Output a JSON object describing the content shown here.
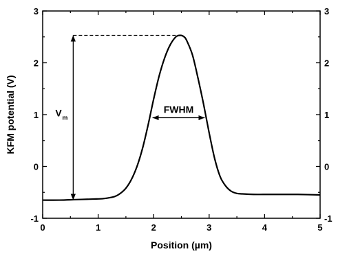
{
  "chart_data": {
    "type": "line",
    "title": "",
    "xlabel": "Position (µm)",
    "ylabel": "KFM potential (V)",
    "xlim": [
      0,
      5
    ],
    "ylim": [
      -1,
      3
    ],
    "xticks": [
      0,
      1,
      2,
      3,
      4,
      5
    ],
    "yticks": [
      -1,
      0,
      1,
      2,
      3
    ],
    "xtick_labels": [
      "0",
      "1",
      "2",
      "3",
      "4",
      "5"
    ],
    "ytick_labels": [
      "-1",
      "0",
      "1",
      "2",
      "3"
    ],
    "right_axis_ticks_mirrored": true,
    "grid": false,
    "legend": "none",
    "series": [
      {
        "color": "#000000",
        "x": [
          0,
          0.3,
          0.6,
          0.9,
          1.1,
          1.3,
          1.4,
          1.5,
          1.6,
          1.7,
          1.8,
          1.9,
          2.0,
          2.1,
          2.2,
          2.3,
          2.4,
          2.48,
          2.55,
          2.6,
          2.7,
          2.8,
          2.9,
          3.0,
          3.1,
          3.2,
          3.3,
          3.4,
          3.5,
          3.6,
          3.8,
          4.0,
          4.3,
          4.6,
          5.0
        ],
        "y": [
          -0.65,
          -0.65,
          -0.64,
          -0.63,
          -0.62,
          -0.58,
          -0.52,
          -0.42,
          -0.25,
          0.0,
          0.35,
          0.8,
          1.3,
          1.75,
          2.1,
          2.35,
          2.5,
          2.53,
          2.5,
          2.42,
          2.15,
          1.7,
          1.2,
          0.65,
          0.15,
          -0.2,
          -0.38,
          -0.48,
          -0.52,
          -0.53,
          -0.54,
          -0.54,
          -0.54,
          -0.54,
          -0.55
        ]
      }
    ],
    "annotations": {
      "vm": {
        "label_main": "V",
        "label_sub": "m",
        "x": 0.55,
        "y_from": -0.65,
        "y_to": 2.53,
        "dash_to_x": 2.48
      },
      "fwhm": {
        "label": "FWHM",
        "y": 0.94,
        "x_from": 1.98,
        "x_to": 2.92
      }
    }
  }
}
